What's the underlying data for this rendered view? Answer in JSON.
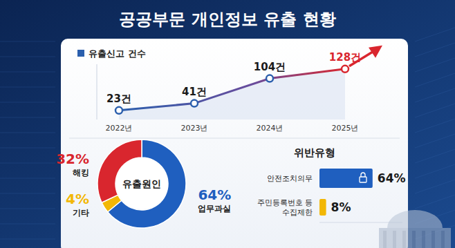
{
  "title": "공공부문 개인정보 유출 현황",
  "chart_data": [
    {
      "type": "line",
      "categories": [
        "2022년",
        "2023년",
        "2024년",
        "2025년"
      ],
      "series": [
        {
          "name": "유출신고 건수",
          "color": "#2b5fad",
          "marker": "circle",
          "values": [
            23,
            41,
            104,
            128
          ],
          "value_labels": [
            "23건",
            "41건",
            "104건",
            "128건"
          ]
        }
      ],
      "ylim": [
        0,
        140
      ],
      "data_labels": true,
      "tick_labels": "x",
      "legend": "top-left",
      "grid": false
    },
    {
      "type": "donut",
      "title": "유출원인",
      "categories": [
        "업무과실",
        "기타",
        "해킹"
      ],
      "values": [
        64,
        4,
        32
      ],
      "value_labels": [
        "64%",
        "4%",
        "32%"
      ],
      "colors": [
        "#1f5fbf",
        "#f2b705",
        "#d9262e"
      ],
      "data_labels": true
    },
    {
      "type": "bar",
      "orientation": "horizontal",
      "title": "위반유형",
      "categories": [
        "안전조치의무",
        "주민등록번호 등\n수집제한"
      ],
      "values": [
        64,
        8
      ],
      "value_labels": [
        "64%",
        "8%"
      ],
      "colors": [
        "#1f5fbf",
        "#f2b705"
      ],
      "xlim": [
        0,
        100
      ],
      "data_labels": true,
      "tick_labels": "y"
    }
  ]
}
